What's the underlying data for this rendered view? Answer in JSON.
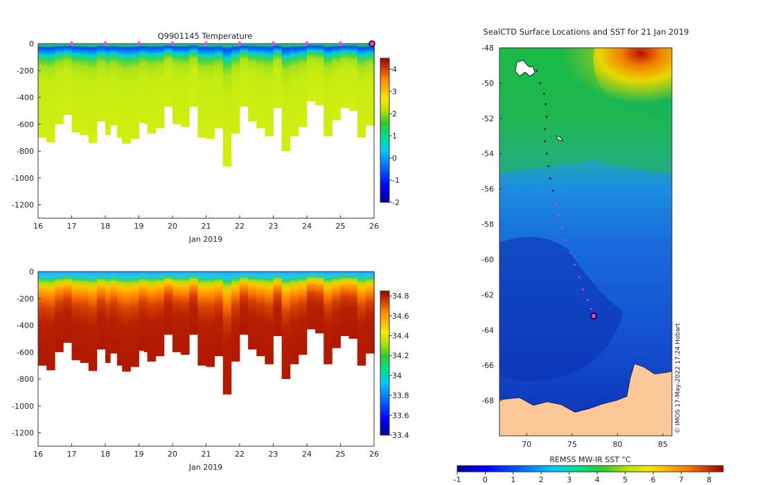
{
  "temp_panel": {
    "title": "Q9901145  Temperature",
    "xlabel": "Jan 2019",
    "x_ticks": [
      "16",
      "17",
      "18",
      "19",
      "20",
      "21",
      "22",
      "23",
      "24",
      "25",
      "26"
    ],
    "y_ticks": [
      "0",
      "-200",
      "-400",
      "-600",
      "-800",
      "-1000",
      "-1200"
    ],
    "colorbar_ticks": [
      "4",
      "3",
      "2",
      "1",
      "0",
      "-1",
      "-2"
    ]
  },
  "sal_panel": {
    "xlabel": "Jan 2019",
    "x_ticks": [
      "16",
      "17",
      "18",
      "19",
      "20",
      "21",
      "22",
      "23",
      "24",
      "25",
      "26"
    ],
    "y_ticks": [
      "0",
      "-200",
      "-400",
      "-600",
      "-800",
      "-1000",
      "-1200"
    ],
    "colorbar_ticks": [
      "34.8",
      "34.6",
      "34.4",
      "34.2",
      "34",
      "33.8",
      "33.6",
      "33.4"
    ]
  },
  "map_panel": {
    "title": "SealCTD Surface Locations and SST for 21 Jan 2019",
    "lat_ticks": [
      "-48",
      "-50",
      "-52",
      "-54",
      "-56",
      "-58",
      "-60",
      "-62",
      "-64",
      "-66",
      "-68"
    ],
    "lon_ticks": [
      "70",
      "75",
      "80",
      "85"
    ],
    "colorbar_label": "REMSS MW-IR SST °C",
    "colorbar_ticks": [
      "-1",
      "0",
      "1",
      "2",
      "3",
      "4",
      "5",
      "6",
      "7",
      "8"
    ],
    "credit": "© IMOS 17-May-2022 17:24 Hobart"
  },
  "colors": {
    "land": "#fcc898",
    "marker": "#ff33ff"
  },
  "chart_data": [
    {
      "type": "heatmap",
      "title": "Q9901145  Temperature",
      "xlabel": "Jan 2019",
      "ylabel": "",
      "xlim": [
        16,
        26
      ],
      "ylim": [
        -1300,
        0
      ],
      "clim": [
        -2,
        4.5
      ],
      "colormap": "jet",
      "profile_days": [
        16.0,
        16.25,
        16.5,
        16.75,
        17.0,
        17.25,
        17.5,
        17.75,
        18.0,
        18.15,
        18.35,
        18.5,
        18.75,
        19.0,
        19.15,
        19.25,
        19.5,
        19.75,
        20.0,
        20.25,
        20.5,
        20.75,
        21.0,
        21.25,
        21.5,
        21.75,
        22.0,
        22.25,
        22.5,
        22.75,
        23.0,
        23.25,
        23.5,
        23.75,
        24.0,
        24.25,
        24.5,
        24.75,
        25.0,
        25.25,
        25.5,
        25.75,
        26.0
      ],
      "profile_max_depth_m": [
        -700,
        -735,
        -600,
        -530,
        -660,
        -680,
        -740,
        -580,
        -680,
        -610,
        -700,
        -745,
        -710,
        -590,
        -600,
        -670,
        -630,
        -470,
        -600,
        -620,
        -470,
        -700,
        -710,
        -630,
        -915,
        -670,
        -470,
        -580,
        -630,
        -690,
        -480,
        -800,
        -690,
        -620,
        -430,
        -460,
        -690,
        -570,
        -480,
        -500,
        -700,
        -610,
        -620
      ],
      "profile_markers_days": [
        17,
        18,
        19,
        20,
        21,
        22,
        23,
        24,
        25
      ]
    },
    {
      "type": "heatmap",
      "title": "",
      "xlabel": "Jan 2019",
      "ylabel": "",
      "xlim": [
        16,
        26
      ],
      "ylim": [
        -1300,
        0
      ],
      "clim": [
        33.4,
        34.85
      ],
      "colormap": "jet",
      "profile_days": [
        16.0,
        16.25,
        16.5,
        16.75,
        17.0,
        17.25,
        17.5,
        17.75,
        18.0,
        18.15,
        18.35,
        18.5,
        18.75,
        19.0,
        19.15,
        19.25,
        19.5,
        19.75,
        20.0,
        20.25,
        20.5,
        20.75,
        21.0,
        21.25,
        21.5,
        21.75,
        22.0,
        22.25,
        22.5,
        22.75,
        23.0,
        23.25,
        23.5,
        23.75,
        24.0,
        24.25,
        24.5,
        24.75,
        25.0,
        25.25,
        25.5,
        25.75,
        26.0
      ],
      "profile_max_depth_m": [
        -700,
        -735,
        -600,
        -530,
        -660,
        -680,
        -740,
        -580,
        -680,
        -610,
        -700,
        -745,
        -710,
        -590,
        -600,
        -670,
        -630,
        -470,
        -600,
        -620,
        -470,
        -700,
        -710,
        -630,
        -915,
        -670,
        -470,
        -580,
        -630,
        -690,
        -480,
        -800,
        -690,
        -620,
        -430,
        -460,
        -690,
        -570,
        -480,
        -500,
        -700,
        -610,
        -620
      ]
    },
    {
      "type": "scatter",
      "title": "SealCTD Surface Locations and SST for 21 Jan 2019",
      "xlabel": "",
      "ylabel": "",
      "xlim": [
        67,
        86
      ],
      "ylim": [
        -70,
        -48
      ],
      "track_lon": [
        71.1,
        71.5,
        71.9,
        72.1,
        72.2,
        72.0,
        72.0,
        72.2,
        72.4,
        72.6,
        72.9,
        73.2,
        73.5,
        73.9,
        74.3,
        74.8,
        75.3,
        75.8,
        76.2,
        76.7,
        77.1,
        77.2
      ],
      "track_lat": [
        -49.3,
        -50.0,
        -50.6,
        -51.2,
        -51.9,
        -52.6,
        -53.3,
        -54.0,
        -54.7,
        -55.4,
        -56.1,
        -56.8,
        -57.5,
        -58.2,
        -58.9,
        -59.6,
        -60.3,
        -61.0,
        -61.7,
        -62.3,
        -62.8,
        -63.2
      ],
      "latest_position": {
        "lon": 77.3,
        "lat": -63.2
      },
      "sst_range": [
        -1,
        8.5
      ]
    }
  ]
}
